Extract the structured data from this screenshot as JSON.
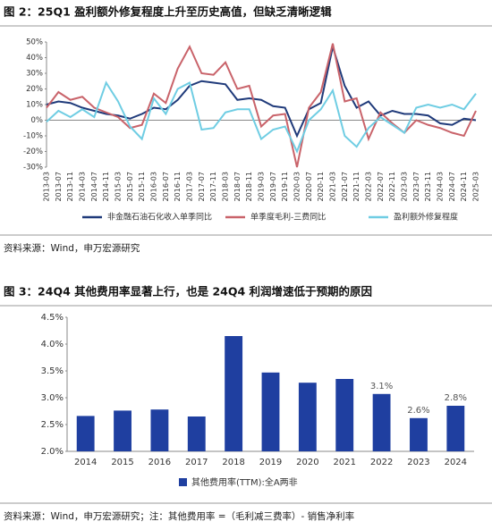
{
  "chart_data": [
    {
      "type": "line",
      "title": "图 2：25Q1 盈利额外修复程度上升至历史高值，但缺乏清晰逻辑",
      "source": "资料来源：Wind，申万宏源研究",
      "categories": [
        "2013-03",
        "2013-07",
        "2013-11",
        "2014-03",
        "2014-07",
        "2014-11",
        "2015-03",
        "2015-07",
        "2015-11",
        "2016-03",
        "2016-07",
        "2016-11",
        "2017-03",
        "2017-07",
        "2017-11",
        "2018-03",
        "2018-07",
        "2018-11",
        "2019-03",
        "2019-07",
        "2019-11",
        "2020-03",
        "2020-07",
        "2020-11",
        "2021-03",
        "2021-07",
        "2021-11",
        "2022-03",
        "2022-07",
        "2022-11",
        "2023-03",
        "2023-07",
        "2023-11",
        "2024-03",
        "2024-07",
        "2024-11",
        "2025-03"
      ],
      "series": [
        {
          "name": "非金融石油石化收入单季同比",
          "color": "#1f3a7a",
          "values": [
            10,
            12,
            11,
            8,
            6,
            4,
            3,
            1,
            4,
            8,
            7,
            13,
            22,
            25,
            24,
            23,
            13,
            14,
            13,
            9,
            8,
            -10,
            7,
            11,
            47,
            22,
            8,
            12,
            3,
            6,
            4,
            4,
            3,
            -2,
            -3,
            1,
            0
          ]
        },
        {
          "name": "单季度毛利-三费同比",
          "color": "#c9636a",
          "values": [
            8,
            18,
            13,
            15,
            8,
            5,
            2,
            -5,
            -3,
            17,
            11,
            33,
            47,
            30,
            29,
            37,
            20,
            22,
            -4,
            3,
            4,
            -30,
            8,
            18,
            49,
            12,
            14,
            -12,
            5,
            -2,
            -8,
            0,
            -3,
            -5,
            -8,
            -10,
            6
          ]
        },
        {
          "name": "盈利额外修复程度",
          "color": "#6fcde3",
          "values": [
            -1,
            6,
            2,
            7,
            2,
            24,
            12,
            -4,
            -12,
            14,
            4,
            20,
            24,
            -6,
            -5,
            5,
            7,
            7,
            -12,
            -6,
            -4,
            -20,
            0,
            7,
            19,
            -10,
            -17,
            -5,
            2,
            -3,
            -8,
            8,
            10,
            8,
            10,
            7,
            17
          ]
        }
      ],
      "ylim": [
        -30,
        50
      ],
      "yticks": [
        {
          "value": -30,
          "label": "-30%"
        },
        {
          "value": -20,
          "label": "-20%"
        },
        {
          "value": -10,
          "label": "-10%"
        },
        {
          "value": 0,
          "label": "0%"
        },
        {
          "value": 10,
          "label": "10%"
        },
        {
          "value": 20,
          "label": "20%"
        },
        {
          "value": 30,
          "label": "30%"
        },
        {
          "value": 40,
          "label": "40%"
        },
        {
          "value": 50,
          "label": "50%"
        }
      ]
    },
    {
      "type": "bar",
      "title": "图 3：24Q4 其他费用率显著上行，也是 24Q4 利润增速低于预期的原因",
      "source": "资料来源：Wind，申万宏源研究；注：其他费用率 =（毛利减三费率）- 销售净利率",
      "categories": [
        "2014",
        "2015",
        "2016",
        "2017",
        "2018",
        "2019",
        "2020",
        "2021",
        "2022",
        "2023",
        "2024"
      ],
      "series": [
        {
          "name": "其他费用率(TTM):全A两非",
          "color": "#1f3fa0",
          "values": [
            2.66,
            2.76,
            2.78,
            2.65,
            4.15,
            3.47,
            3.28,
            3.35,
            3.07,
            2.62,
            2.85
          ],
          "value_labels": [
            null,
            null,
            null,
            null,
            null,
            null,
            null,
            null,
            "3.1%",
            "2.6%",
            "2.8%"
          ]
        }
      ],
      "ylim": [
        2.0,
        4.5
      ],
      "yticks": [
        {
          "value": 2.0,
          "label": "2.0%"
        },
        {
          "value": 2.5,
          "label": "2.5%"
        },
        {
          "value": 3.0,
          "label": "3.0%"
        },
        {
          "value": 3.5,
          "label": "3.5%"
        },
        {
          "value": 4.0,
          "label": "4.0%"
        },
        {
          "value": 4.5,
          "label": "4.5%"
        }
      ]
    }
  ]
}
